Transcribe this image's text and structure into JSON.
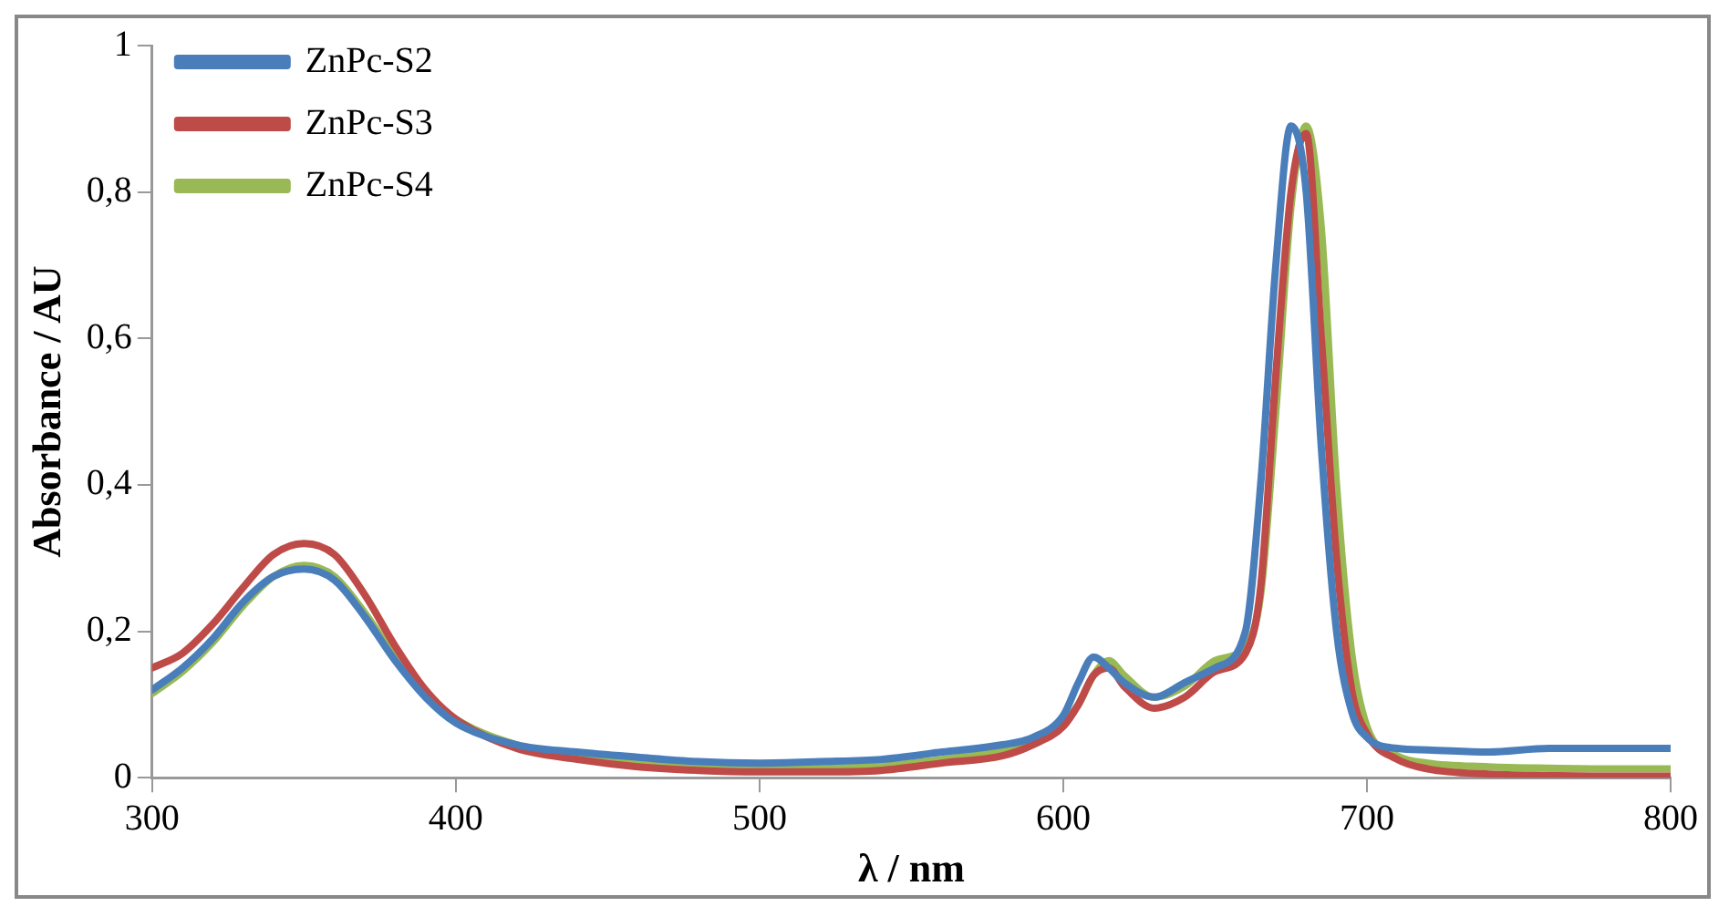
{
  "chart_data": {
    "type": "line",
    "xlabel": "λ / nm",
    "ylabel": "Absorbance / AU",
    "x": [
      300,
      310,
      320,
      330,
      340,
      350,
      360,
      370,
      380,
      390,
      400,
      420,
      440,
      460,
      480,
      500,
      520,
      540,
      560,
      580,
      590,
      600,
      605,
      610,
      615,
      620,
      630,
      640,
      650,
      660,
      665,
      670,
      675,
      680,
      685,
      690,
      695,
      700,
      710,
      720,
      740,
      760,
      780,
      800
    ],
    "series": [
      {
        "name": "ZnPc-S2",
        "color": "#4a7ebb",
        "values": [
          0.12,
          0.15,
          0.19,
          0.24,
          0.275,
          0.285,
          0.27,
          0.22,
          0.16,
          0.11,
          0.075,
          0.045,
          0.035,
          0.028,
          0.022,
          0.02,
          0.022,
          0.025,
          0.035,
          0.045,
          0.055,
          0.085,
          0.13,
          0.165,
          0.15,
          0.13,
          0.11,
          0.13,
          0.15,
          0.2,
          0.4,
          0.7,
          0.89,
          0.8,
          0.45,
          0.2,
          0.09,
          0.055,
          0.04,
          0.038,
          0.035,
          0.04,
          0.04,
          0.04
        ]
      },
      {
        "name": "ZnPc-S3",
        "color": "#be4b48",
        "values": [
          0.15,
          0.17,
          0.21,
          0.26,
          0.305,
          0.32,
          0.305,
          0.25,
          0.18,
          0.12,
          0.08,
          0.04,
          0.025,
          0.015,
          0.01,
          0.008,
          0.008,
          0.01,
          0.02,
          0.03,
          0.045,
          0.07,
          0.1,
          0.14,
          0.15,
          0.125,
          0.095,
          0.11,
          0.145,
          0.17,
          0.26,
          0.55,
          0.8,
          0.88,
          0.6,
          0.3,
          0.12,
          0.06,
          0.025,
          0.012,
          0.005,
          0.003,
          0.002,
          0.002
        ]
      },
      {
        "name": "ZnPc-S4",
        "color": "#98b954",
        "values": [
          0.115,
          0.145,
          0.185,
          0.235,
          0.275,
          0.29,
          0.275,
          0.225,
          0.165,
          0.115,
          0.08,
          0.045,
          0.03,
          0.02,
          0.015,
          0.013,
          0.013,
          0.016,
          0.025,
          0.038,
          0.05,
          0.075,
          0.1,
          0.14,
          0.16,
          0.14,
          0.11,
          0.125,
          0.16,
          0.18,
          0.25,
          0.5,
          0.78,
          0.89,
          0.75,
          0.4,
          0.17,
          0.07,
          0.03,
          0.02,
          0.015,
          0.013,
          0.012,
          0.012
        ]
      }
    ],
    "xlim": [
      300,
      800
    ],
    "xticks": [
      300,
      400,
      500,
      600,
      700,
      800
    ],
    "ylim": [
      0,
      1
    ],
    "yticks": [
      0,
      {
        "value": 0.2,
        "label": "0,2"
      },
      {
        "value": 0.4,
        "label": "0,4"
      },
      {
        "value": 0.6,
        "label": "0,6"
      },
      {
        "value": 0.8,
        "label": "0,8"
      },
      1
    ],
    "grid": false,
    "legend": "top left",
    "marker": "none",
    "line_style": "solid"
  }
}
